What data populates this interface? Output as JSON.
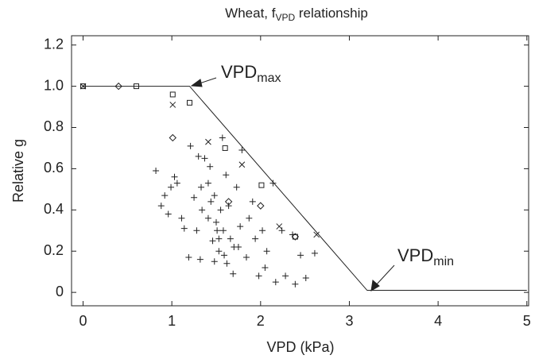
{
  "chart_data": {
    "type": "scatter",
    "title": {
      "text": "Wheat, f",
      "subscript": "VPD",
      "suffix": " relationship"
    },
    "x_label": "VPD (kPa)",
    "y_label": "Relative g",
    "xlim": [
      -0.13,
      5.02
    ],
    "ylim": [
      -0.065,
      1.245
    ],
    "xticks": [
      0,
      1,
      2,
      3,
      4,
      5
    ],
    "yticks": [
      0,
      0.2,
      0.4,
      0.6,
      {
        "value": 0.8,
        "label": "0.8"
      },
      {
        "value": 1,
        "label": "1.0"
      },
      1.2
    ],
    "line": {
      "color": "#222",
      "x": [
        0,
        1.2,
        3.2,
        5
      ],
      "values": [
        1,
        1,
        0.01,
        0.01
      ]
    },
    "series": [
      {
        "marker": "plus",
        "color": "#222",
        "x": [
          0.82,
          0.88,
          0.92,
          0.96,
          0.99,
          1.03,
          1.06,
          1.11,
          1.14,
          1.21,
          1.19,
          1.3,
          1.33,
          1.34,
          1.37,
          1.41,
          1.43,
          1.46,
          1.48,
          1.51,
          1.53,
          1.57,
          1.59,
          1.61,
          1.64,
          1.66,
          1.69,
          1.73,
          1.77,
          1.79,
          1.84,
          1.91,
          1.94,
          1.98,
          2.02,
          2.07,
          2.14,
          2.17,
          2.24,
          2.28,
          2.36,
          2.39,
          2.45,
          2.51,
          2.61,
          1.44,
          1.41,
          1.48,
          1.53,
          1.58,
          1.25,
          1.28,
          1.32,
          1.7,
          1.87,
          2.05,
          1.62,
          1.55,
          1.5,
          1.75
        ],
        "values": [
          0.59,
          0.42,
          0.47,
          0.38,
          0.51,
          0.56,
          0.53,
          0.36,
          0.31,
          0.71,
          0.17,
          0.66,
          0.51,
          0.4,
          0.65,
          0.36,
          0.61,
          0.25,
          0.47,
          0.3,
          0.2,
          0.75,
          0.18,
          0.57,
          0.42,
          0.26,
          0.09,
          0.51,
          0.32,
          0.69,
          0.17,
          0.44,
          0.26,
          0.08,
          0.3,
          0.2,
          0.53,
          0.05,
          0.3,
          0.08,
          0.28,
          0.04,
          0.18,
          0.07,
          0.19,
          0.44,
          0.53,
          0.15,
          0.26,
          0.3,
          0.46,
          0.3,
          0.16,
          0.22,
          0.36,
          0.12,
          0.14,
          0.4,
          0.34,
          0.22
        ]
      },
      {
        "marker": "cross",
        "color": "#222",
        "x": [
          0,
          1.01,
          1.41,
          1.79,
          2.21,
          2.63
        ],
        "values": [
          1.0,
          0.91,
          0.73,
          0.62,
          0.32,
          0.28
        ]
      },
      {
        "marker": "square",
        "color": "#222",
        "x": [
          0,
          0.6,
          1.01,
          1.2,
          1.6,
          2.01,
          2.39
        ],
        "values": [
          1.0,
          1.0,
          0.96,
          0.92,
          0.7,
          0.52,
          0.27
        ]
      },
      {
        "marker": "diamond",
        "color": "#222",
        "x": [
          0.4,
          1.01,
          1.64,
          2.0,
          2.39
        ],
        "values": [
          1.0,
          0.75,
          0.44,
          0.42,
          0.27
        ]
      }
    ],
    "annotations": [
      {
        "text": "VPD",
        "subscript": "max"
      },
      {
        "text": "VPD",
        "subscript": "min"
      }
    ]
  }
}
